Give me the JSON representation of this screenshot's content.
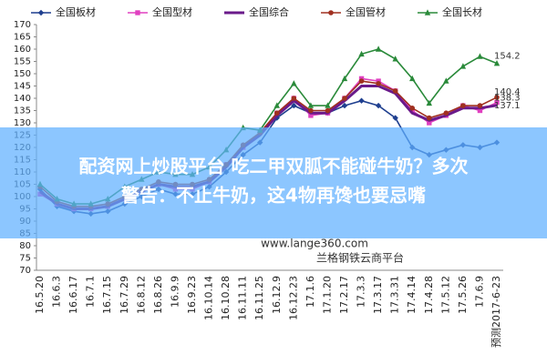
{
  "chart_data": {
    "type": "line",
    "categories": [
      "16.5.20",
      "16.6.3",
      "16.6.17",
      "16.7.1",
      "16.7.15",
      "16.7.29",
      "16.8.12",
      "16.8.26",
      "16.9.9",
      "16.9.23",
      "16.10.14",
      "16.10.28",
      "16.11.11",
      "16.11.25",
      "16.12.9",
      "16.12.23",
      "17.1.6",
      "17.1.20",
      "17.2.17",
      "17.3.3",
      "17.3.17",
      "17.3.31",
      "17.4.14",
      "17.4.28",
      "17.5.12",
      "17.5.26",
      "17.6.9",
      "预测2017-6-23"
    ],
    "series": [
      {
        "name": "全国板材",
        "color": "#1f3f8f",
        "marker": "diamond",
        "values": [
          103,
          96,
          94,
          93,
          94,
          97,
          100,
          103,
          101,
          101,
          104,
          110,
          117,
          122,
          132,
          137,
          134,
          134,
          137,
          139,
          137,
          132,
          120,
          117,
          119,
          121,
          120,
          122
        ]
      },
      {
        "name": "全国型材",
        "color": "#e040c0",
        "marker": "square",
        "values": [
          101,
          97,
          95,
          95,
          96,
          99,
          102,
          105,
          103,
          103,
          106,
          113,
          120,
          126,
          134,
          140,
          133,
          134,
          140,
          148,
          147,
          143,
          135,
          130,
          133,
          137,
          135,
          138.3
        ]
      },
      {
        "name": "全国综合",
        "color": "#6a1a8a",
        "marker": "none",
        "values": [
          102,
          97,
          95,
          95,
          96,
          99,
          102,
          105,
          104,
          104,
          106,
          112,
          120,
          125,
          133,
          139,
          134,
          134,
          139,
          145,
          145,
          142,
          134,
          131,
          133,
          136,
          136,
          137.1
        ]
      },
      {
        "name": "全国管材",
        "color": "#a03020",
        "marker": "circle",
        "values": [
          104,
          98,
          96,
          96,
          97,
          100,
          103,
          106,
          105,
          105,
          107,
          113,
          121,
          126,
          134,
          140,
          135,
          135,
          140,
          147,
          146,
          143,
          136,
          132,
          134,
          137,
          137,
          140.4
        ]
      },
      {
        "name": "全国长材",
        "color": "#2a8a3a",
        "marker": "triangle",
        "values": [
          105,
          99,
          97,
          97,
          99,
          104,
          107,
          110,
          109,
          109,
          112,
          119,
          128,
          127,
          137,
          146,
          137,
          137,
          148,
          158,
          160,
          156,
          148,
          138,
          147,
          153,
          157,
          154.2
        ]
      }
    ],
    "ylim": [
      70,
      170
    ],
    "yticks": [
      70,
      75,
      80,
      85,
      90,
      95,
      100,
      105,
      110,
      115,
      120,
      125,
      130,
      135,
      140,
      145,
      150,
      155,
      160,
      165,
      170
    ],
    "grid": false,
    "watermarks": [
      "www.lange360.com",
      "兰格钢铁云商平台"
    ],
    "headline": [
      "配资网上炒股平台 吃二甲双胍不能碰牛奶？多次",
      "警告：不止牛奶，这4物再馋也要忌嘴"
    ]
  }
}
